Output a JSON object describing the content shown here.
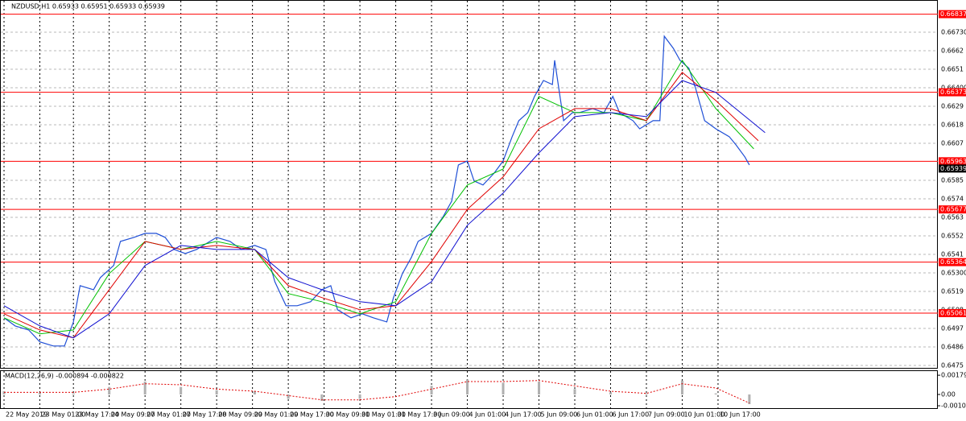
{
  "chart_data": [
    {
      "type": "line",
      "title": "NZDUSD,H1  0.65933 0.65951 0.65933 0.65939",
      "xlim": [
        -1.8,
        417.2
      ],
      "ylim": [
        0.64731,
        0.66921
      ],
      "xticks": [
        {
          "value": 0,
          "label": "22 May 2019"
        },
        {
          "value": 16,
          "label": "23 May 01:00"
        },
        {
          "value": 31,
          "label": "23 May 17:00"
        },
        {
          "value": 47,
          "label": "24 May 09:00"
        },
        {
          "value": 63,
          "label": "27 May 01:00"
        },
        {
          "value": 79,
          "label": "27 May 17:00"
        },
        {
          "value": 95,
          "label": "28 May 09:00"
        },
        {
          "value": 111,
          "label": "29 May 01:00"
        },
        {
          "value": 127,
          "label": "29 May 17:00"
        },
        {
          "value": 143,
          "label": "30 May 09:00"
        },
        {
          "value": 159,
          "label": "31 May 01:00"
        },
        {
          "value": 175,
          "label": "31 May 17:00"
        },
        {
          "value": 191,
          "label": "3 Jun 09:00"
        },
        {
          "value": 207,
          "label": "4 Jun 01:00"
        },
        {
          "value": 223,
          "label": "4 Jun 17:00"
        },
        {
          "value": 239,
          "label": "5 Jun 09:00"
        },
        {
          "value": 255,
          "label": "6 Jun 01:00"
        },
        {
          "value": 271,
          "label": "6 Jun 17:00"
        },
        {
          "value": 287,
          "label": "7 Jun 09:00"
        },
        {
          "value": 303,
          "label": "10 Jun 01:00"
        },
        {
          "value": 319,
          "label": "10 Jun 17:00"
        }
      ],
      "yticks": [
        {
          "value": 0.6673,
          "label": "0.66730"
        },
        0.6662,
        0.6651,
        {
          "value": 0.664,
          "label": "0.66400"
        },
        0.6629,
        0.6618,
        0.6607,
        0.6585,
        0.6574,
        0.6563,
        0.6552,
        0.6541,
        {
          "value": 0.653,
          "label": "0.65300"
        },
        0.6519,
        0.6508,
        0.6497,
        0.6486,
        0.6475
      ],
      "grid": true,
      "levels": [
        0.66837,
        0.66373,
        0.65963,
        0.65677,
        0.65364,
        0.65061
      ],
      "levels_color": "#ff0000",
      "last_price": 0.65939,
      "series": [
        {
          "color": "#1f4fd6",
          "x": [
            0,
            5,
            11,
            16,
            22,
            27,
            31,
            34,
            40,
            43,
            49,
            52,
            58,
            63,
            68,
            72,
            76,
            81,
            86,
            92,
            95,
            101,
            106,
            112,
            117,
            121,
            126,
            131,
            137,
            142,
            146,
            149,
            155,
            160,
            165,
            171,
            174,
            178,
            182,
            185,
            191,
            196,
            200,
            203,
            207,
            210,
            214,
            219,
            223,
            227,
            230,
            234,
            237,
            241,
            245,
            246,
            250,
            254,
            257,
            263,
            268,
            272,
            275,
            281,
            284,
            290,
            293,
            295,
            299,
            302,
            306,
            309,
            313,
            318,
            324,
            327,
            331,
            333
          ],
          "values": [
            0.65033,
            0.64985,
            0.64961,
            0.6489,
            0.64866,
            0.64866,
            0.65009,
            0.65224,
            0.652,
            0.65272,
            0.65344,
            0.65487,
            0.65511,
            0.65535,
            0.65535,
            0.65511,
            0.65439,
            0.65415,
            0.65439,
            0.65487,
            0.65511,
            0.65487,
            0.65439,
            0.65463,
            0.65439,
            0.65248,
            0.65105,
            0.65105,
            0.65129,
            0.652,
            0.65224,
            0.65081,
            0.65033,
            0.65057,
            0.65033,
            0.65009,
            0.65153,
            0.65296,
            0.65392,
            0.65487,
            0.65535,
            0.6563,
            0.65726,
            0.65941,
            0.65965,
            0.65846,
            0.65822,
            0.65893,
            0.65965,
            0.66109,
            0.66204,
            0.66252,
            0.66348,
            0.66443,
            0.66419,
            0.66563,
            0.66204,
            0.66252,
            0.66252,
            0.66276,
            0.66252,
            0.66348,
            0.66252,
            0.66204,
            0.66156,
            0.66204,
            0.66204,
            0.66706,
            0.66634,
            0.66563,
            0.66515,
            0.66395,
            0.66204,
            0.66156,
            0.66109,
            0.66061,
            0.65989,
            0.65941
          ]
        },
        {
          "color": "#00c000",
          "x": [
            0,
            16,
            31,
            47,
            63,
            79,
            95,
            112,
            127,
            142,
            159,
            175,
            191,
            207,
            223,
            239,
            255,
            271,
            287,
            303,
            318,
            335
          ],
          "values": [
            0.65033,
            0.64938,
            0.64961,
            0.65296,
            0.65487,
            0.65439,
            0.65487,
            0.65439,
            0.65177,
            0.65129,
            0.65057,
            0.65129,
            0.65535,
            0.65822,
            0.65917,
            0.66348,
            0.66252,
            0.66252,
            0.66204,
            0.66563,
            0.66276,
            0.66037
          ]
        },
        {
          "color": "#e00000",
          "x": [
            0,
            16,
            31,
            47,
            63,
            79,
            95,
            112,
            127,
            142,
            159,
            175,
            191,
            207,
            223,
            239,
            255,
            271,
            287,
            303,
            318,
            337
          ],
          "values": [
            0.65057,
            0.64961,
            0.64914,
            0.652,
            0.65487,
            0.65439,
            0.65463,
            0.65439,
            0.65224,
            0.65153,
            0.65081,
            0.65105,
            0.65368,
            0.65678,
            0.6587,
            0.66156,
            0.66276,
            0.66276,
            0.66204,
            0.66491,
            0.66324,
            0.66085
          ]
        },
        {
          "color": "#1010d0",
          "x": [
            0,
            16,
            31,
            47,
            63,
            79,
            95,
            112,
            127,
            142,
            159,
            175,
            191,
            207,
            223,
            239,
            255,
            271,
            287,
            303,
            318,
            340
          ],
          "values": [
            0.65105,
            0.64985,
            0.64914,
            0.65057,
            0.65344,
            0.65463,
            0.65439,
            0.65439,
            0.65272,
            0.652,
            0.65129,
            0.65105,
            0.65248,
            0.65583,
            0.65774,
            0.66013,
            0.66228,
            0.66252,
            0.66228,
            0.66443,
            0.66372,
            0.66133
          ]
        }
      ]
    },
    {
      "type": "macd",
      "title": "MACD(12,26,9) -0.000894 -0.000822",
      "xlim": [
        -1.8,
        417.2
      ],
      "ylim": [
        -0.00127,
        0.0021
      ],
      "yticks": [
        0.001791,
        {
          "value": 0,
          "label": "0.00"
        },
        -0.001051
      ],
      "x": [
        0,
        16,
        31,
        47,
        63,
        79,
        95,
        112,
        127,
        142,
        159,
        175,
        191,
        207,
        223,
        239,
        255,
        271,
        287,
        303,
        318,
        333
      ],
      "histogram": {
        "color": "#b0b0b0",
        "values": [
          0.0003,
          0.0002,
          0.0001,
          0.0007,
          0.0012,
          0.0007,
          0.0004,
          0.0003,
          -0.0004,
          -0.0006,
          -0.0004,
          0,
          0.0008,
          0.0014,
          0.0011,
          0.0012,
          0.0005,
          0.0002,
          0.0001,
          0.0013,
          0.0001,
          -0.0009
        ]
      },
      "signal": {
        "color": "#e00000",
        "values": [
          0.0002,
          0.0002,
          0.0002,
          0.0005,
          0.001,
          0.0009,
          0.0005,
          0.0003,
          -0.0001,
          -0.0005,
          -0.0005,
          -0.0002,
          0.0005,
          0.0012,
          0.0012,
          0.0013,
          0.0008,
          0.0003,
          0.0001,
          0.001,
          0.0006,
          -0.0008
        ]
      }
    }
  ]
}
